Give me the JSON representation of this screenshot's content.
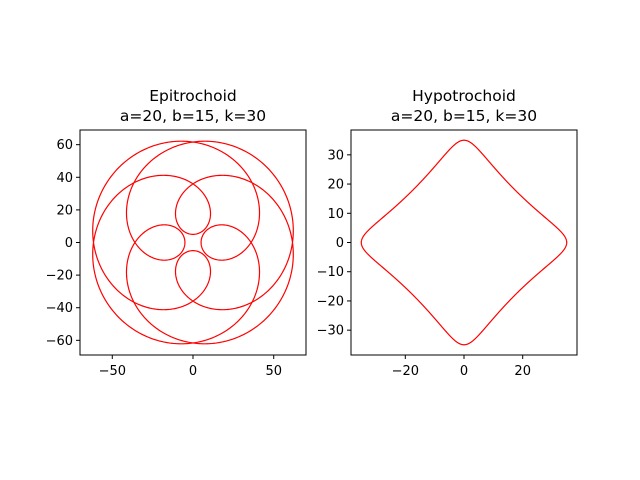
{
  "chart_data": [
    {
      "type": "line",
      "curve": "epitrochoid",
      "title": "Epitrochoid",
      "subtitle": "a=20, b=15, k=30",
      "params": {
        "a": 20,
        "b": 15,
        "k": 30
      },
      "xlim": [
        -70,
        70
      ],
      "ylim": [
        -69,
        69
      ],
      "xticks": [
        -50,
        0,
        50
      ],
      "yticks": [
        -60,
        -40,
        -20,
        0,
        20,
        40,
        60
      ],
      "color": "#ff0000",
      "grid": false
    },
    {
      "type": "line",
      "curve": "hypotrochoid",
      "title": "Hypotrochoid",
      "subtitle": "a=20, b=15, k=30",
      "params": {
        "a": 20,
        "b": 15,
        "k": 30
      },
      "xlim": [
        -38.5,
        38.5
      ],
      "ylim": [
        -38.5,
        38.5
      ],
      "xticks": [
        -20,
        0,
        20
      ],
      "yticks": [
        -30,
        -20,
        -10,
        0,
        10,
        20,
        30
      ],
      "color": "#ff0000",
      "grid": false
    }
  ]
}
